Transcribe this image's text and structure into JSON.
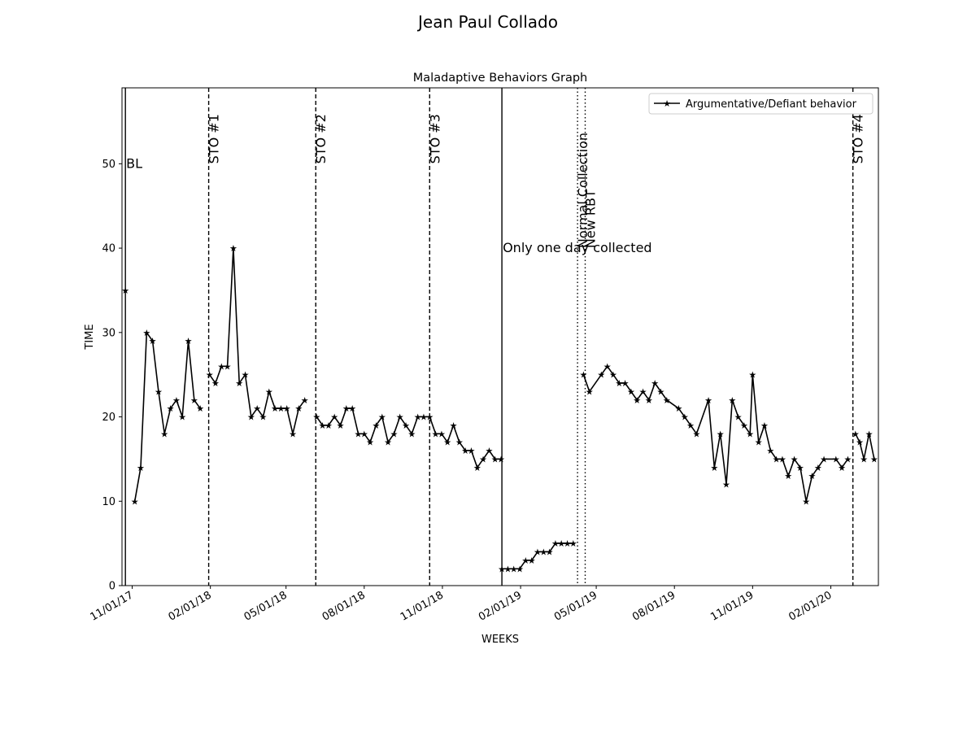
{
  "suptitle": "Jean Paul  Collado",
  "chart_data": {
    "type": "line",
    "title": "Maladaptive Behaviors Graph",
    "xlabel": "WEEKS",
    "ylabel": "TIME",
    "xlim": [
      "2017-10-20",
      "2020-03-28"
    ],
    "ylim": [
      0,
      59
    ],
    "yticks": [
      0,
      10,
      20,
      30,
      40,
      50
    ],
    "xticks": [
      {
        "date": "2017-11-01",
        "label": "11/01/17"
      },
      {
        "date": "2018-02-01",
        "label": "02/01/18"
      },
      {
        "date": "2018-05-01",
        "label": "05/01/18"
      },
      {
        "date": "2018-08-01",
        "label": "08/01/18"
      },
      {
        "date": "2018-11-01",
        "label": "11/01/18"
      },
      {
        "date": "2019-02-01",
        "label": "02/01/19"
      },
      {
        "date": "2019-05-01",
        "label": "05/01/19"
      },
      {
        "date": "2019-08-01",
        "label": "08/01/19"
      },
      {
        "date": "2019-11-01",
        "label": "11/01/19"
      },
      {
        "date": "2020-02-01",
        "label": "02/01/20"
      }
    ],
    "legend": {
      "location": "top-right"
    },
    "grid": false,
    "series": [
      {
        "name": "Argumentative/Defiant behavior",
        "color": "#000000",
        "marker": "star",
        "segments": [
          [
            [
              "2017-10-24",
              35
            ]
          ],
          [
            [
              "2017-11-04",
              10
            ],
            [
              "2017-11-11",
              14
            ],
            [
              "2017-11-18",
              30
            ],
            [
              "2017-11-25",
              29
            ],
            [
              "2017-12-02",
              23
            ],
            [
              "2017-12-09",
              18
            ],
            [
              "2017-12-16",
              21
            ],
            [
              "2017-12-23",
              22
            ],
            [
              "2017-12-30",
              20
            ],
            [
              "2018-01-06",
              29
            ],
            [
              "2018-01-13",
              22
            ],
            [
              "2018-01-20",
              21
            ]
          ],
          [
            [
              "2018-01-31",
              25
            ],
            [
              "2018-02-07",
              24
            ],
            [
              "2018-02-14",
              26
            ],
            [
              "2018-02-21",
              26
            ],
            [
              "2018-02-28",
              40
            ],
            [
              "2018-03-07",
              24
            ],
            [
              "2018-03-14",
              25
            ],
            [
              "2018-03-21",
              20
            ],
            [
              "2018-03-28",
              21
            ],
            [
              "2018-04-04",
              20
            ],
            [
              "2018-04-11",
              23
            ],
            [
              "2018-04-18",
              21
            ],
            [
              "2018-04-25",
              21
            ],
            [
              "2018-05-02",
              21
            ],
            [
              "2018-05-09",
              18
            ],
            [
              "2018-05-16",
              21
            ],
            [
              "2018-05-23",
              22
            ]
          ],
          [
            [
              "2018-06-06",
              20
            ],
            [
              "2018-06-13",
              19
            ],
            [
              "2018-06-20",
              19
            ],
            [
              "2018-06-27",
              20
            ],
            [
              "2018-07-04",
              19
            ],
            [
              "2018-07-11",
              21
            ],
            [
              "2018-07-18",
              21
            ],
            [
              "2018-07-25",
              18
            ],
            [
              "2018-08-01",
              18
            ],
            [
              "2018-08-08",
              17
            ],
            [
              "2018-08-15",
              19
            ],
            [
              "2018-08-22",
              20
            ],
            [
              "2018-08-29",
              17
            ],
            [
              "2018-09-05",
              18
            ],
            [
              "2018-09-12",
              20
            ],
            [
              "2018-09-19",
              19
            ],
            [
              "2018-09-26",
              18
            ],
            [
              "2018-10-03",
              20
            ],
            [
              "2018-10-10",
              20
            ],
            [
              "2018-10-17",
              20
            ],
            [
              "2018-10-24",
              18
            ],
            [
              "2018-10-31",
              18
            ],
            [
              "2018-11-07",
              17
            ],
            [
              "2018-11-14",
              19
            ],
            [
              "2018-11-21",
              17
            ],
            [
              "2018-11-28",
              16
            ],
            [
              "2018-12-05",
              16
            ],
            [
              "2018-12-12",
              14
            ],
            [
              "2018-12-19",
              15
            ],
            [
              "2018-12-26",
              16
            ],
            [
              "2019-01-02",
              15
            ],
            [
              "2019-01-09",
              15
            ]
          ],
          [
            [
              "2019-01-10",
              2
            ],
            [
              "2019-01-17",
              2
            ],
            [
              "2019-01-24",
              2
            ],
            [
              "2019-01-31",
              2
            ],
            [
              "2019-02-07",
              3
            ],
            [
              "2019-02-14",
              3
            ],
            [
              "2019-02-21",
              4
            ],
            [
              "2019-02-28",
              4
            ],
            [
              "2019-03-07",
              4
            ],
            [
              "2019-03-14",
              5
            ],
            [
              "2019-03-21",
              5
            ],
            [
              "2019-03-28",
              5
            ],
            [
              "2019-04-04",
              5
            ]
          ],
          [
            [
              "2019-04-16",
              25
            ],
            [
              "2019-04-23",
              23
            ],
            [
              "2019-05-07",
              25
            ],
            [
              "2019-05-14",
              26
            ],
            [
              "2019-05-21",
              25
            ],
            [
              "2019-05-28",
              24
            ],
            [
              "2019-06-04",
              24
            ],
            [
              "2019-06-11",
              23
            ],
            [
              "2019-06-18",
              22
            ],
            [
              "2019-06-25",
              23
            ],
            [
              "2019-07-02",
              22
            ],
            [
              "2019-07-09",
              24
            ],
            [
              "2019-07-16",
              23
            ],
            [
              "2019-07-23",
              22
            ],
            [
              "2019-08-06",
              21
            ],
            [
              "2019-08-13",
              20
            ],
            [
              "2019-08-20",
              19
            ],
            [
              "2019-08-27",
              18
            ],
            [
              "2019-09-10",
              22
            ],
            [
              "2019-09-17",
              14
            ],
            [
              "2019-09-24",
              18
            ],
            [
              "2019-10-01",
              12
            ],
            [
              "2019-10-08",
              22
            ],
            [
              "2019-10-15",
              20
            ],
            [
              "2019-10-22",
              19
            ],
            [
              "2019-10-29",
              18
            ],
            [
              "2019-11-01",
              25
            ],
            [
              "2019-11-08",
              17
            ],
            [
              "2019-11-15",
              19
            ],
            [
              "2019-11-22",
              16
            ],
            [
              "2019-11-29",
              15
            ],
            [
              "2019-12-06",
              15
            ],
            [
              "2019-12-13",
              13
            ],
            [
              "2019-12-20",
              15
            ],
            [
              "2019-12-27",
              14
            ],
            [
              "2020-01-03",
              10
            ],
            [
              "2020-01-10",
              13
            ],
            [
              "2020-01-17",
              14
            ],
            [
              "2020-01-24",
              15
            ],
            [
              "2020-02-07",
              15
            ],
            [
              "2020-02-14",
              14
            ],
            [
              "2020-02-21",
              15
            ]
          ],
          [
            [
              "2020-03-01",
              18
            ],
            [
              "2020-03-06",
              17
            ],
            [
              "2020-03-11",
              15
            ],
            [
              "2020-03-17",
              18
            ],
            [
              "2020-03-23",
              15
            ]
          ]
        ]
      }
    ],
    "phase_lines": [
      {
        "date": "2017-10-24",
        "style": "solid",
        "label": "BL",
        "label_rotation": 0,
        "label_y": 50
      },
      {
        "date": "2018-01-30",
        "style": "dashed",
        "label": "STO #1",
        "label_rotation": 90,
        "label_y": 50
      },
      {
        "date": "2018-06-05",
        "style": "dashed",
        "label": "STO #2",
        "label_rotation": 90,
        "label_y": 50
      },
      {
        "date": "2018-10-17",
        "style": "dashed",
        "label": "STO #3",
        "label_rotation": 90,
        "label_y": 50
      },
      {
        "date": "2019-01-10",
        "style": "solid",
        "label": "Only one day collected",
        "label_rotation": 0,
        "label_y": 40
      },
      {
        "date": "2019-04-09",
        "style": "dotted",
        "label": "Normal Collection",
        "label_rotation": 90,
        "label_y": 40
      },
      {
        "date": "2019-04-18",
        "style": "dotted",
        "label": "New RBT",
        "label_rotation": 90,
        "label_y": 40
      },
      {
        "date": "2020-02-27",
        "style": "dashed",
        "label": "STO #4",
        "label_rotation": 90,
        "label_y": 50
      }
    ]
  }
}
